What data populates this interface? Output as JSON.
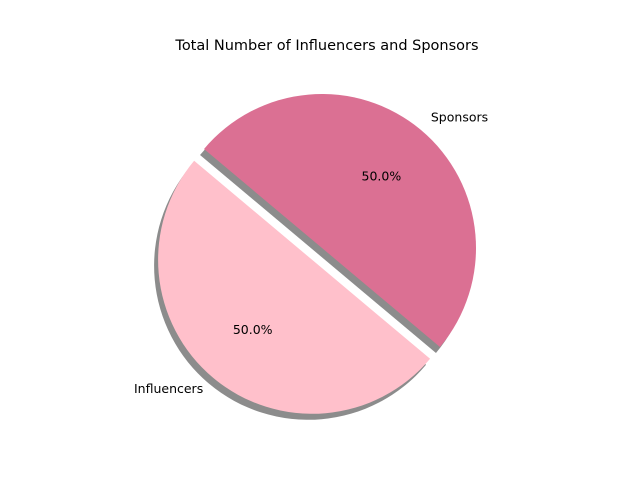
{
  "chart_data": {
    "type": "pie",
    "title": "Total Number of Influencers and Sponsors",
    "slices": [
      {
        "label": "Influencers",
        "value": 50,
        "percent_label": "50.0%",
        "color": "#ffc0cb",
        "exploded": true
      },
      {
        "label": "Sponsors",
        "value": 50,
        "percent_label": "50.0%",
        "color": "#db7093",
        "exploded": false
      }
    ],
    "start_angle_deg": 140,
    "shadow": true
  }
}
